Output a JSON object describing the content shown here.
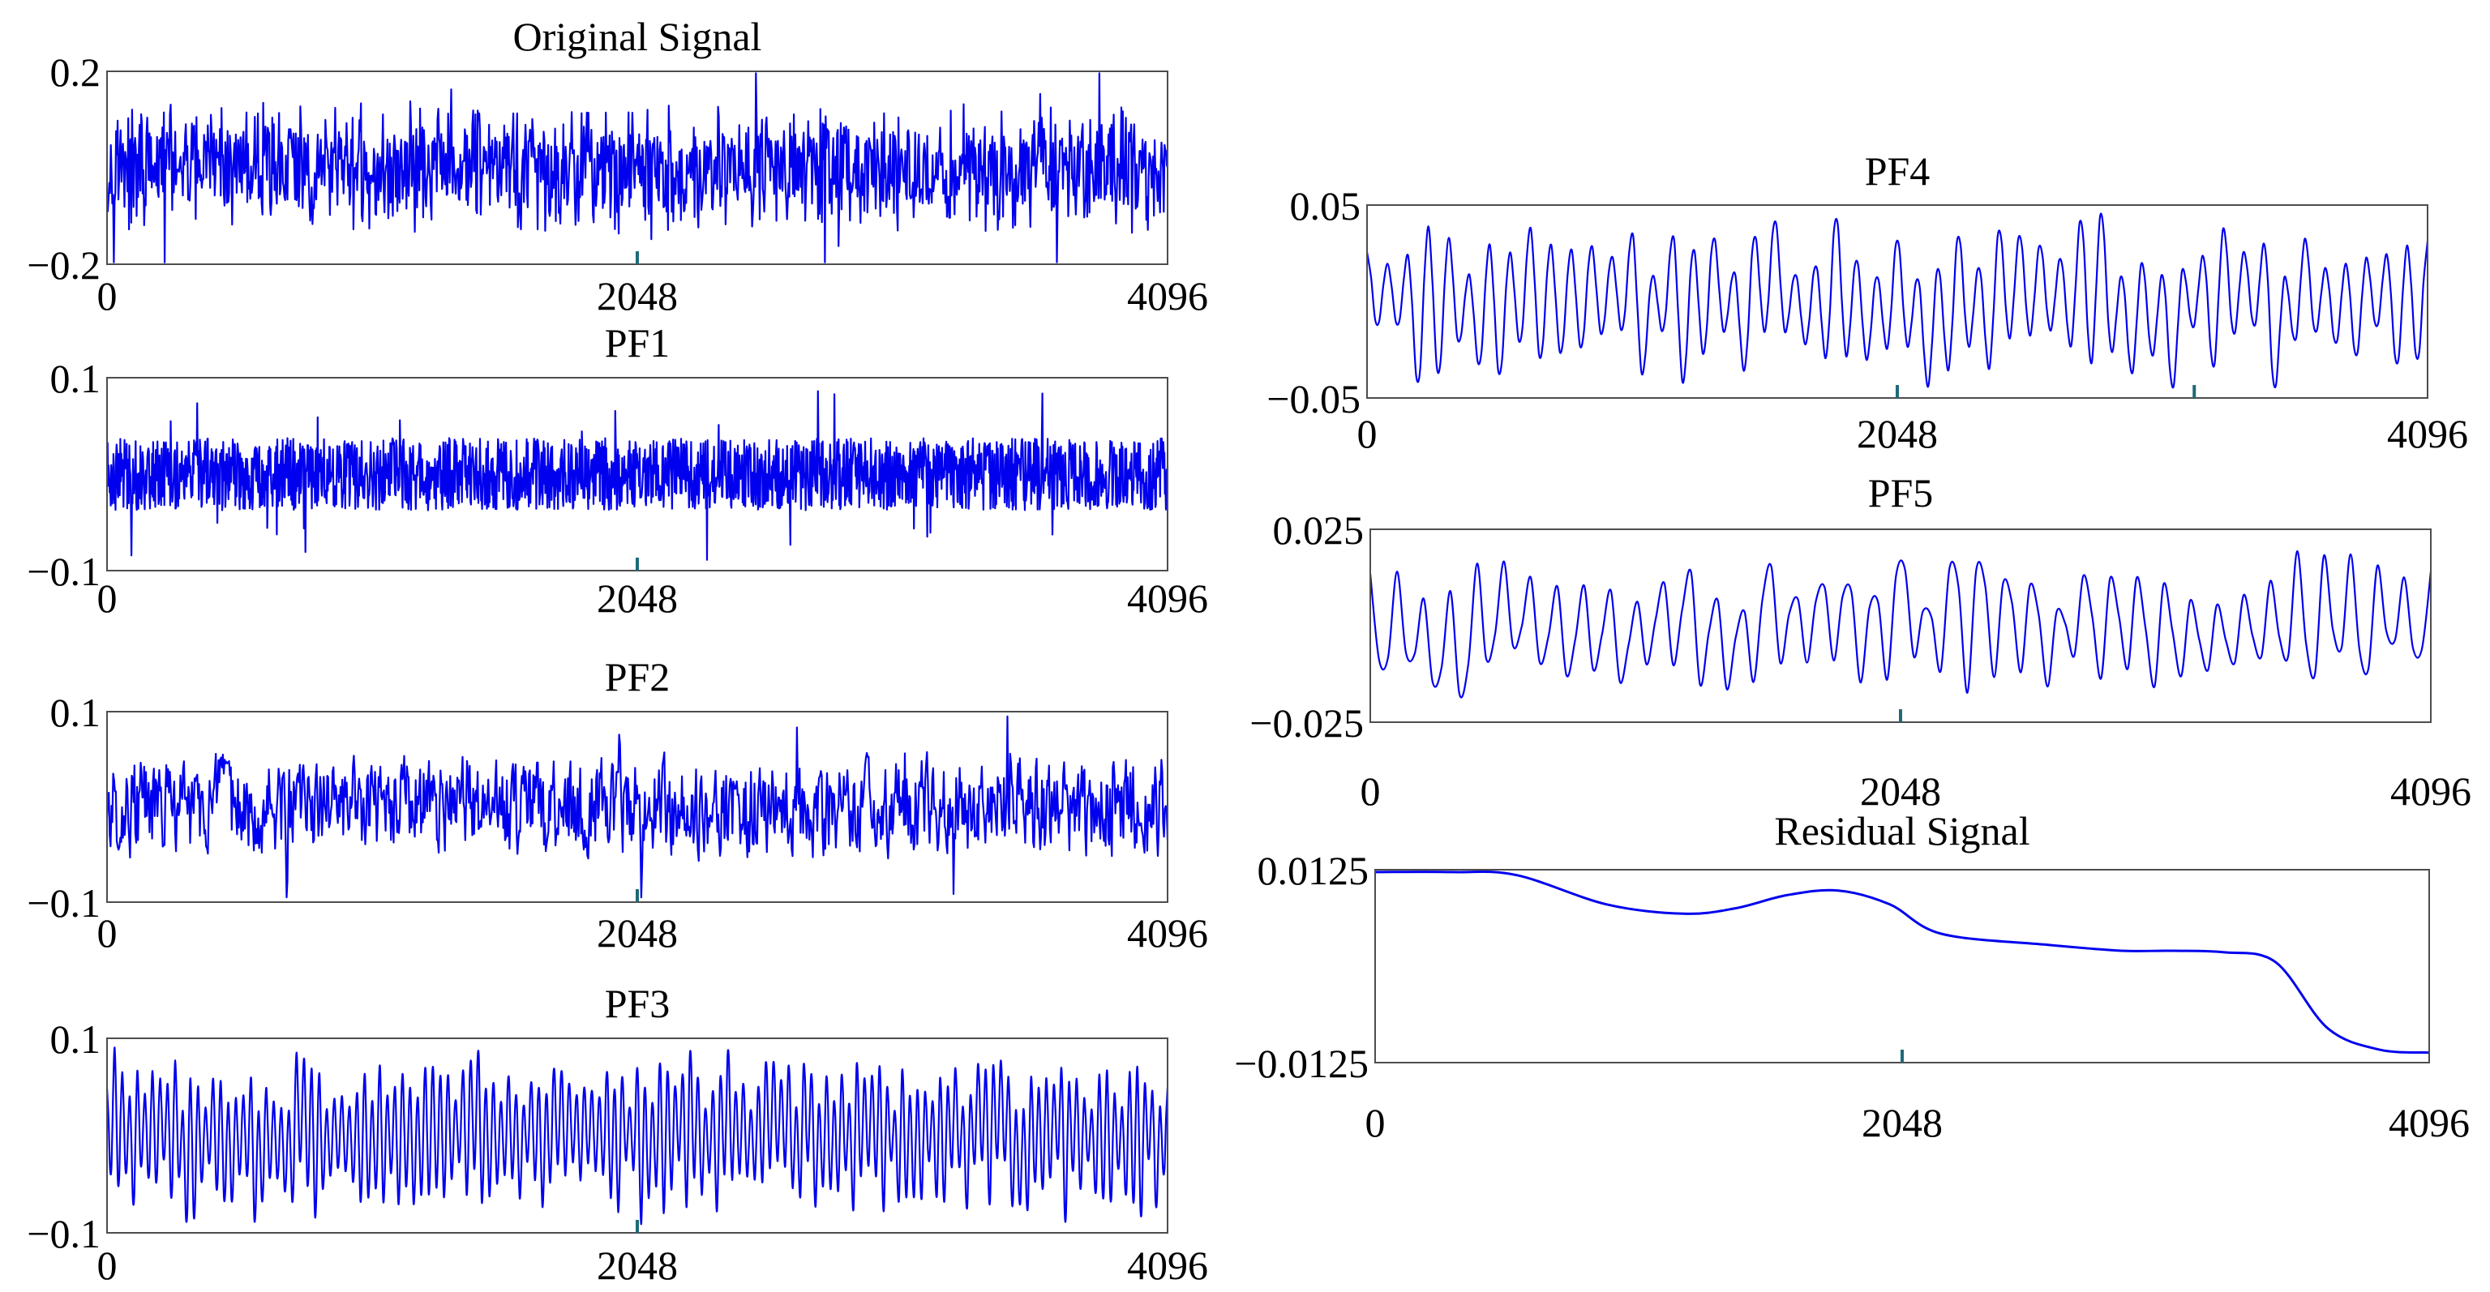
{
  "colors": {
    "line": "#0000ee",
    "frame": "#4d4d4d",
    "tick": "#1f6a78"
  },
  "chart_data": [
    {
      "type": "line",
      "title": "Original Signal",
      "xlim": [
        0,
        4096
      ],
      "ylim": [
        -0.2,
        0.2
      ],
      "xticks": [
        "0",
        "2048",
        "4096"
      ],
      "yticks": [
        "0.2",
        "−0.2"
      ],
      "series": [
        {
          "style": "broadband-noise",
          "amplitude": 0.2,
          "samples": 1400
        }
      ]
    },
    {
      "type": "line",
      "title": "PF1",
      "xlim": [
        0,
        4096
      ],
      "ylim": [
        -0.1,
        0.1
      ],
      "xticks": [
        "0",
        "2048",
        "4096"
      ],
      "yticks": [
        "0.1",
        "−0.1"
      ],
      "series": [
        {
          "style": "high-frequency-noise",
          "amplitude": 0.1,
          "samples": 2000
        }
      ]
    },
    {
      "type": "line",
      "title": "PF2",
      "xlim": [
        0,
        4096
      ],
      "ylim": [
        -0.1,
        0.1
      ],
      "xticks": [
        "0",
        "2048",
        "4096"
      ],
      "yticks": [
        "0.1",
        "−0.1"
      ],
      "series": [
        {
          "style": "medium-frequency-noise",
          "amplitude": 0.1,
          "samples": 1200
        }
      ]
    },
    {
      "type": "line",
      "title": "PF3",
      "xlim": [
        0,
        4096
      ],
      "ylim": [
        -0.1,
        0.1
      ],
      "xticks": [
        "0",
        "2048",
        "4096"
      ],
      "yticks": [
        "0.1",
        "−0.1"
      ],
      "series": [
        {
          "style": "oscillation",
          "amplitude": 0.1,
          "samples": 700
        }
      ]
    },
    {
      "type": "line",
      "title": "PF4",
      "xlim": [
        0,
        4096
      ],
      "ylim": [
        -0.05,
        0.05
      ],
      "xticks": [
        "0",
        "2048",
        "4096"
      ],
      "yticks": [
        "0.05",
        "−0.05"
      ],
      "series": [
        {
          "style": "oscillation",
          "amplitude": 0.05,
          "samples": 260
        }
      ]
    },
    {
      "type": "line",
      "title": "PF5",
      "xlim": [
        0,
        4096
      ],
      "ylim": [
        -0.025,
        0.025
      ],
      "xticks": [
        "0",
        "2048",
        "4096"
      ],
      "yticks": [
        "0.025",
        "−0.025"
      ],
      "series": [
        {
          "style": "low-frequency-oscillation",
          "amplitude": 0.025,
          "samples": 120
        }
      ]
    },
    {
      "type": "line",
      "title": "Residual Signal",
      "xlim": [
        0,
        4096
      ],
      "ylim": [
        -0.0125,
        0.0125
      ],
      "xticks": [
        "0",
        "2048",
        "4096"
      ],
      "yticks": [
        "0.0125",
        "−0.0125"
      ],
      "series": [
        {
          "style": "trend",
          "x": [
            0,
            300,
            550,
            900,
            1200,
            1400,
            1600,
            1800,
            2000,
            2200,
            2600,
            2900,
            3100,
            3300,
            3500,
            3700,
            3900,
            4096
          ],
          "y": [
            0.0122,
            0.0122,
            0.0118,
            0.008,
            0.0068,
            0.0075,
            0.0092,
            0.0098,
            0.008,
            0.0042,
            0.0028,
            0.002,
            0.002,
            0.0018,
            0.0005,
            -0.008,
            -0.0108,
            -0.0112
          ]
        }
      ]
    }
  ]
}
